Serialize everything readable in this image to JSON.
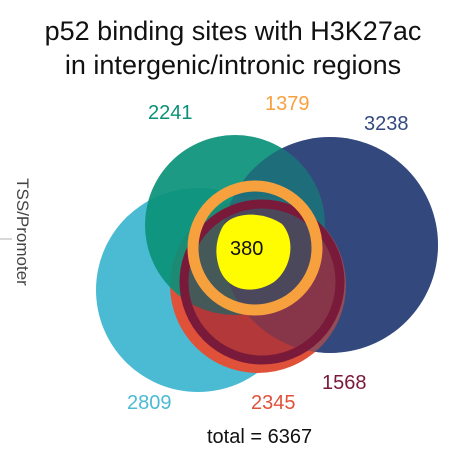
{
  "title_line1": "p52 binding sites with H3K27ac",
  "title_line2": "in intergenic/intronic regions",
  "side_label": "TSS/Promoter",
  "total_text": "total = 6367",
  "center_count": "380",
  "sets": [
    {
      "key": "teal",
      "count": "2241",
      "color": "#0a9178"
    },
    {
      "key": "orange",
      "count": "1379",
      "color": "#f7a13e"
    },
    {
      "key": "navy",
      "count": "3238",
      "color": "#34497f"
    },
    {
      "key": "cyan",
      "count": "2809",
      "color": "#4bbbd4"
    },
    {
      "key": "red",
      "count": "2345",
      "color": "#e0513a"
    },
    {
      "key": "maroon",
      "count": "1568",
      "color": "#7a1a3a"
    }
  ],
  "center_color": "#fffb00"
}
